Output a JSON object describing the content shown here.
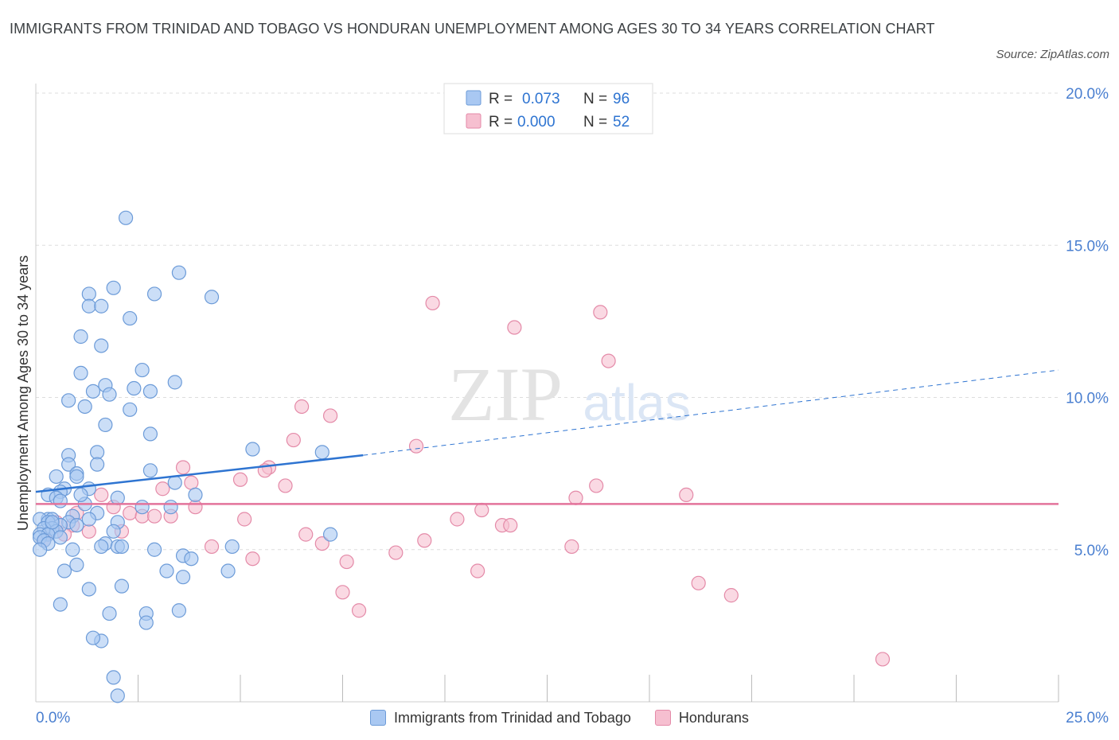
{
  "title": "IMMIGRANTS FROM TRINIDAD AND TOBAGO VS HONDURAN UNEMPLOYMENT AMONG AGES 30 TO 34 YEARS CORRELATION CHART",
  "source": "Source: ZipAtlas.com",
  "watermark": {
    "zip": "ZIP",
    "atlas": "atlas"
  },
  "colors": {
    "blue_fill": "#a9c8f2",
    "blue_stroke": "#6c9bd8",
    "blue_line": "#2e74d1",
    "pink_fill": "#f6bfd0",
    "pink_stroke": "#e48aa8",
    "pink_line": "#e3739b",
    "axis_text": "#4a7fd0",
    "grid": "#dddddd"
  },
  "stats_legend": [
    {
      "r_label": "R = ",
      "r_value": "0.073",
      "n_label": "N = ",
      "n_value": "96",
      "series": "blue"
    },
    {
      "r_label": "R = ",
      "r_value": "0.000",
      "n_label": "N = ",
      "n_value": "52",
      "series": "pink"
    }
  ],
  "chart_data": {
    "type": "scatter",
    "title": "IMMIGRANTS FROM TRINIDAD AND TOBAGO VS HONDURAN UNEMPLOYMENT AMONG AGES 30 TO 34 YEARS CORRELATION CHART",
    "xlabel": "",
    "ylabel": "Unemployment Among Ages 30 to 34 years",
    "xlim": [
      0,
      25
    ],
    "ylim": [
      0,
      20
    ],
    "x_tick_labels": [
      {
        "value": 0,
        "label": "0.0%"
      },
      {
        "value": 25,
        "label": "25.0%"
      }
    ],
    "y_tick_labels": [
      {
        "value": 5,
        "label": "5.0%"
      },
      {
        "value": 10,
        "label": "10.0%"
      },
      {
        "value": 15,
        "label": "15.0%"
      },
      {
        "value": 20,
        "label": "20.0%"
      }
    ],
    "legend_position": "bottom",
    "grid": true,
    "series": [
      {
        "name": "Immigrants from Trinidad and Tobago",
        "color": "blue",
        "trend": {
          "x": [
            0,
            8.0
          ],
          "y": [
            6.9,
            8.1
          ],
          "extended_to": [
            25,
            10.9
          ]
        },
        "points": [
          [
            2.2,
            15.9
          ],
          [
            3.5,
            14.1
          ],
          [
            1.9,
            13.6
          ],
          [
            1.3,
            13.4
          ],
          [
            2.9,
            13.4
          ],
          [
            4.3,
            13.3
          ],
          [
            1.3,
            13.0
          ],
          [
            1.6,
            13.0
          ],
          [
            2.3,
            12.6
          ],
          [
            1.1,
            12.0
          ],
          [
            1.6,
            11.7
          ],
          [
            2.6,
            10.9
          ],
          [
            1.1,
            10.8
          ],
          [
            3.4,
            10.5
          ],
          [
            1.7,
            10.4
          ],
          [
            2.4,
            10.3
          ],
          [
            2.8,
            10.2
          ],
          [
            1.4,
            10.2
          ],
          [
            1.8,
            10.1
          ],
          [
            0.8,
            9.9
          ],
          [
            1.2,
            9.7
          ],
          [
            2.3,
            9.6
          ],
          [
            1.7,
            9.1
          ],
          [
            2.8,
            8.8
          ],
          [
            5.3,
            8.3
          ],
          [
            7.0,
            8.2
          ],
          [
            1.5,
            8.2
          ],
          [
            0.8,
            8.1
          ],
          [
            1.5,
            7.8
          ],
          [
            0.8,
            7.8
          ],
          [
            2.8,
            7.6
          ],
          [
            1.0,
            7.5
          ],
          [
            1.0,
            7.4
          ],
          [
            0.5,
            7.4
          ],
          [
            3.4,
            7.2
          ],
          [
            1.3,
            7.0
          ],
          [
            0.7,
            7.0
          ],
          [
            0.6,
            6.9
          ],
          [
            0.3,
            6.8
          ],
          [
            3.9,
            6.8
          ],
          [
            2.0,
            6.7
          ],
          [
            0.5,
            6.7
          ],
          [
            0.6,
            6.6
          ],
          [
            1.2,
            6.5
          ],
          [
            2.6,
            6.4
          ],
          [
            3.3,
            6.4
          ],
          [
            1.5,
            6.2
          ],
          [
            0.9,
            6.1
          ],
          [
            1.3,
            6.0
          ],
          [
            0.3,
            6.0
          ],
          [
            0.1,
            6.0
          ],
          [
            0.4,
            6.0
          ],
          [
            2.0,
            5.9
          ],
          [
            0.3,
            5.9
          ],
          [
            0.8,
            5.9
          ],
          [
            1.0,
            5.8
          ],
          [
            0.6,
            5.8
          ],
          [
            0.4,
            5.7
          ],
          [
            0.2,
            5.7
          ],
          [
            0.5,
            5.6
          ],
          [
            1.9,
            5.6
          ],
          [
            0.1,
            5.5
          ],
          [
            0.3,
            5.5
          ],
          [
            7.2,
            5.5
          ],
          [
            0.6,
            5.4
          ],
          [
            0.1,
            5.4
          ],
          [
            0.2,
            5.3
          ],
          [
            0.3,
            5.2
          ],
          [
            1.7,
            5.2
          ],
          [
            2.0,
            5.1
          ],
          [
            1.6,
            5.1
          ],
          [
            2.1,
            5.1
          ],
          [
            4.8,
            5.1
          ],
          [
            0.9,
            5.0
          ],
          [
            2.9,
            5.0
          ],
          [
            0.1,
            5.0
          ],
          [
            3.6,
            4.8
          ],
          [
            3.8,
            4.7
          ],
          [
            1.0,
            4.5
          ],
          [
            0.7,
            4.3
          ],
          [
            3.2,
            4.3
          ],
          [
            4.7,
            4.3
          ],
          [
            3.6,
            4.1
          ],
          [
            2.1,
            3.8
          ],
          [
            1.3,
            3.7
          ],
          [
            0.6,
            3.2
          ],
          [
            3.5,
            3.0
          ],
          [
            1.8,
            2.9
          ],
          [
            2.7,
            2.9
          ],
          [
            2.7,
            2.6
          ],
          [
            1.6,
            2.0
          ],
          [
            1.9,
            0.8
          ],
          [
            2.0,
            0.2
          ],
          [
            1.4,
            2.1
          ],
          [
            0.4,
            5.9
          ],
          [
            1.1,
            6.8
          ]
        ]
      },
      {
        "name": "Hondurans",
        "color": "pink",
        "trend": {
          "x": [
            0,
            25
          ],
          "y": [
            6.5,
            6.5
          ]
        },
        "points": [
          [
            9.7,
            13.1
          ],
          [
            13.8,
            12.8
          ],
          [
            11.7,
            12.3
          ],
          [
            14.0,
            11.2
          ],
          [
            6.5,
            9.7
          ],
          [
            7.2,
            9.4
          ],
          [
            6.3,
            8.6
          ],
          [
            9.3,
            8.4
          ],
          [
            3.6,
            7.7
          ],
          [
            5.7,
            7.7
          ],
          [
            5.6,
            7.6
          ],
          [
            5.0,
            7.3
          ],
          [
            3.8,
            7.2
          ],
          [
            6.1,
            7.1
          ],
          [
            13.7,
            7.1
          ],
          [
            3.1,
            7.0
          ],
          [
            1.6,
            6.8
          ],
          [
            15.9,
            6.8
          ],
          [
            13.2,
            6.7
          ],
          [
            1.9,
            6.4
          ],
          [
            3.9,
            6.4
          ],
          [
            10.9,
            6.3
          ],
          [
            2.3,
            6.2
          ],
          [
            2.6,
            6.1
          ],
          [
            2.9,
            6.1
          ],
          [
            3.3,
            6.1
          ],
          [
            5.1,
            6.0
          ],
          [
            10.3,
            6.0
          ],
          [
            0.9,
            5.8
          ],
          [
            11.4,
            5.8
          ],
          [
            11.6,
            5.8
          ],
          [
            1.3,
            5.6
          ],
          [
            2.1,
            5.6
          ],
          [
            6.6,
            5.5
          ],
          [
            0.3,
            5.5
          ],
          [
            9.5,
            5.3
          ],
          [
            7.0,
            5.2
          ],
          [
            13.1,
            5.1
          ],
          [
            4.3,
            5.1
          ],
          [
            8.8,
            4.9
          ],
          [
            5.3,
            4.7
          ],
          [
            7.6,
            4.6
          ],
          [
            10.8,
            4.3
          ],
          [
            16.2,
            3.9
          ],
          [
            7.5,
            3.6
          ],
          [
            17.0,
            3.5
          ],
          [
            7.9,
            3.0
          ],
          [
            20.7,
            1.4
          ],
          [
            0.2,
            5.3
          ],
          [
            1.0,
            6.2
          ],
          [
            0.5,
            5.9
          ],
          [
            0.7,
            5.5
          ]
        ]
      }
    ]
  }
}
